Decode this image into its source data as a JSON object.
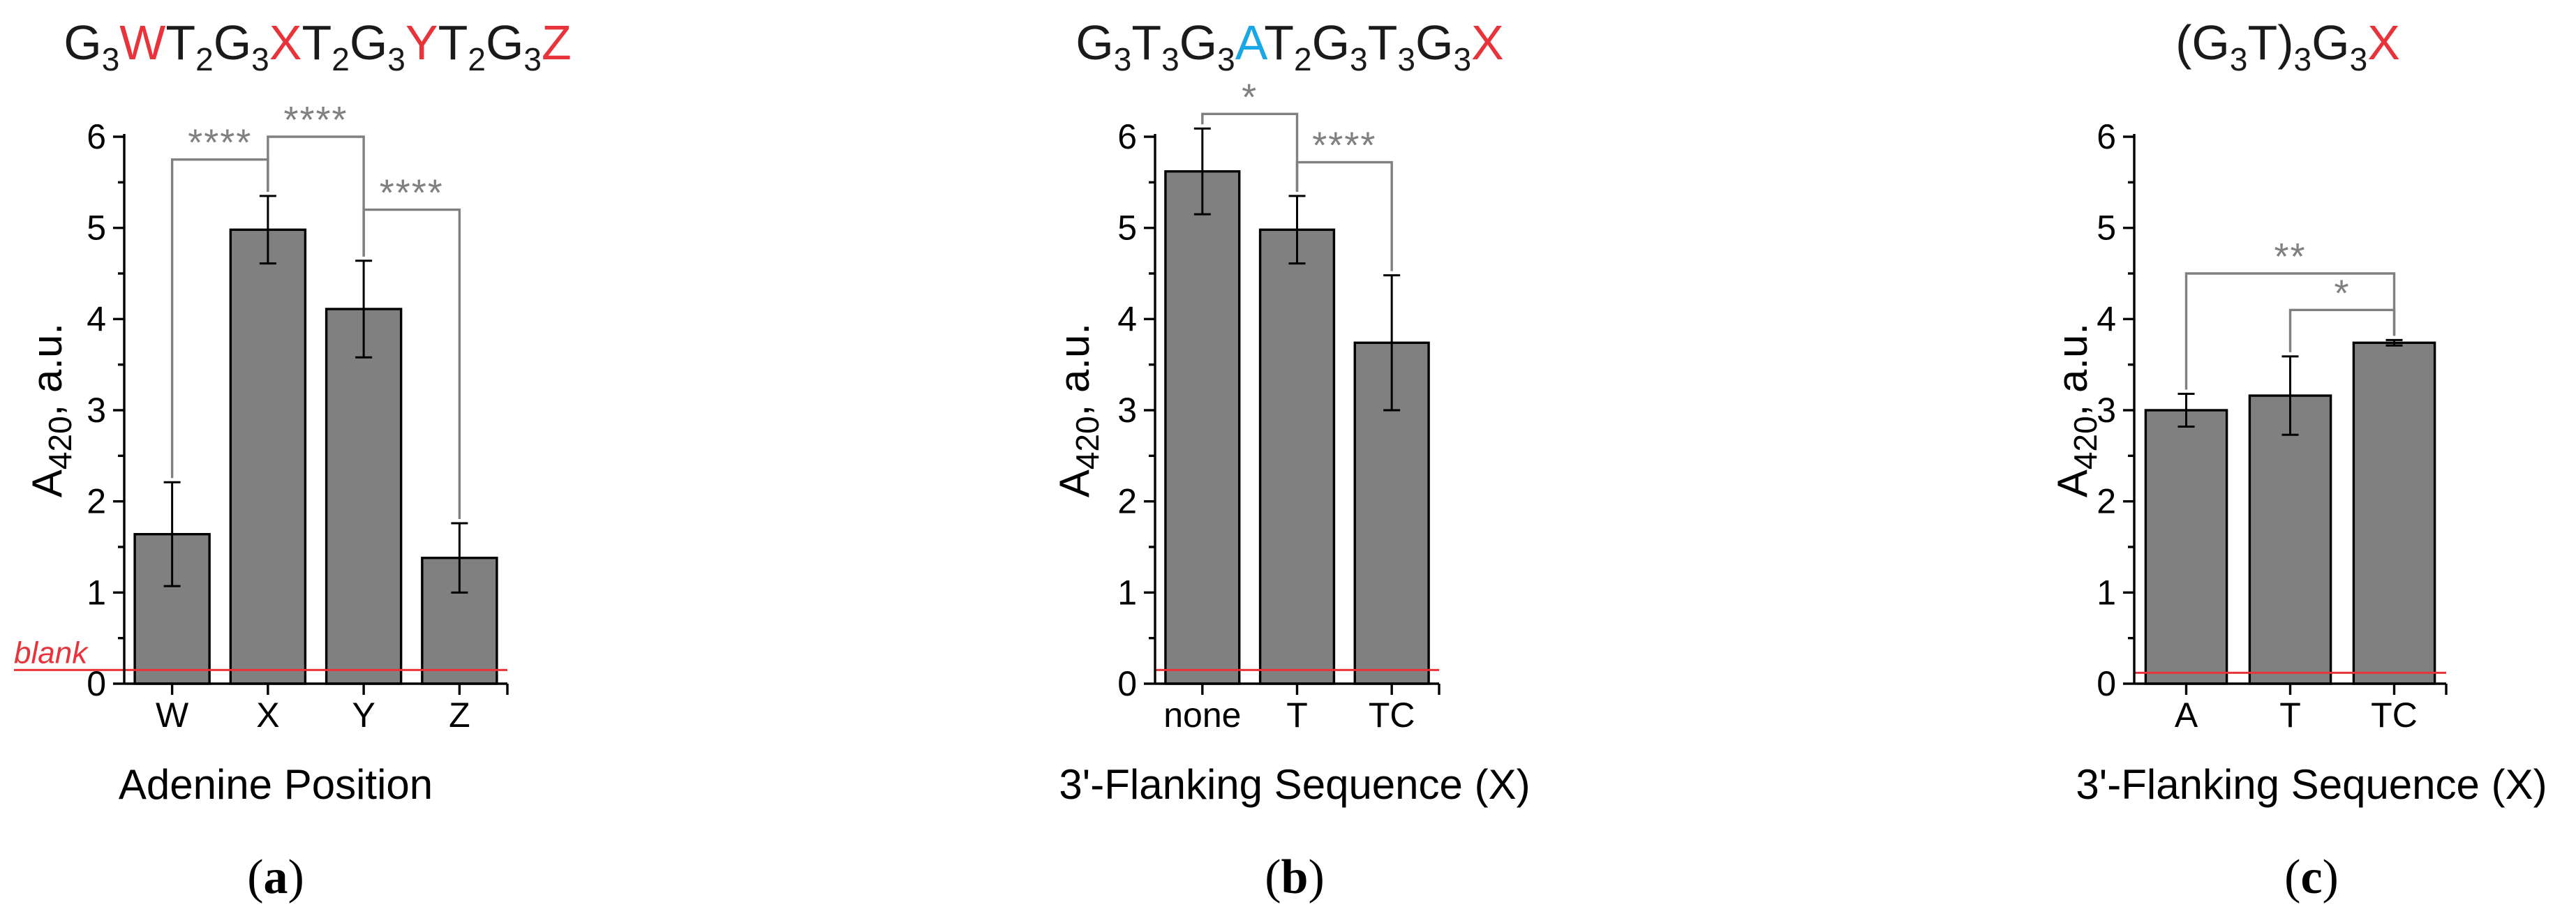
{
  "colors": {
    "bar": "#808080",
    "significance": "#808080",
    "highlight_red": "#e8333a",
    "highlight_blue": "#1aa7e6",
    "baseline": "#e8333a"
  },
  "chart_data": [
    {
      "panel": "(a)",
      "type": "bar",
      "title": "G3WT2G3XT2G3YT2G3Z",
      "title_parts": [
        {
          "text": "G",
          "style": "normal"
        },
        {
          "text": "3",
          "style": "sub"
        },
        {
          "text": "W",
          "style": "red"
        },
        {
          "text": "T",
          "style": "normal"
        },
        {
          "text": "2",
          "style": "sub"
        },
        {
          "text": "G",
          "style": "normal"
        },
        {
          "text": "3",
          "style": "sub"
        },
        {
          "text": "X",
          "style": "red"
        },
        {
          "text": "T",
          "style": "normal"
        },
        {
          "text": "2",
          "style": "sub"
        },
        {
          "text": "G",
          "style": "normal"
        },
        {
          "text": "3",
          "style": "sub"
        },
        {
          "text": "Y",
          "style": "red"
        },
        {
          "text": "T",
          "style": "normal"
        },
        {
          "text": "2",
          "style": "sub"
        },
        {
          "text": "G",
          "style": "normal"
        },
        {
          "text": "3",
          "style": "sub"
        },
        {
          "text": "Z",
          "style": "red"
        }
      ],
      "categories": [
        "W",
        "X",
        "Y",
        "Z"
      ],
      "values": [
        1.64,
        4.98,
        4.11,
        1.38
      ],
      "errors": [
        0.57,
        0.37,
        0.53,
        0.38
      ],
      "xlabel": "Adenine Position",
      "ylabel_main": "A",
      "ylabel_sub": "420",
      "ylabel_tail": ", a.u.",
      "ylim": [
        0,
        6
      ],
      "yticks": [
        "0",
        "1",
        "2",
        "3",
        "4",
        "5",
        "6"
      ],
      "baseline": {
        "value": 0.15,
        "label": "blank"
      },
      "significance": [
        {
          "from": 0,
          "to": 1,
          "label": "****",
          "level": 5.75
        },
        {
          "from": 1,
          "to": 2,
          "label": "****",
          "level": 6.0
        },
        {
          "from": 2,
          "to": 3,
          "label": "****",
          "level": 5.2
        }
      ]
    },
    {
      "panel": "(b)",
      "type": "bar",
      "title": "G3T3G3AT2G3T3G3X",
      "title_parts": [
        {
          "text": "G",
          "style": "normal"
        },
        {
          "text": "3",
          "style": "sub"
        },
        {
          "text": "T",
          "style": "normal"
        },
        {
          "text": "3",
          "style": "sub"
        },
        {
          "text": "G",
          "style": "normal"
        },
        {
          "text": "3",
          "style": "sub"
        },
        {
          "text": "A",
          "style": "blue"
        },
        {
          "text": "T",
          "style": "normal"
        },
        {
          "text": "2",
          "style": "sub"
        },
        {
          "text": "G",
          "style": "normal"
        },
        {
          "text": "3",
          "style": "sub"
        },
        {
          "text": "T",
          "style": "normal"
        },
        {
          "text": "3",
          "style": "sub"
        },
        {
          "text": "G",
          "style": "normal"
        },
        {
          "text": "3",
          "style": "sub"
        },
        {
          "text": "X",
          "style": "red"
        }
      ],
      "categories": [
        "none",
        "T",
        "TC"
      ],
      "values": [
        5.62,
        4.98,
        3.74
      ],
      "errors": [
        0.47,
        0.37,
        0.74
      ],
      "xlabel": "3'-Flanking Sequence (X)",
      "ylabel_main": "A",
      "ylabel_sub": "420",
      "ylabel_tail": ", a.u.",
      "ylim": [
        0,
        6
      ],
      "yticks": [
        "0",
        "1",
        "2",
        "3",
        "4",
        "5",
        "6"
      ],
      "baseline": {
        "value": 0.15,
        "label": ""
      },
      "significance": [
        {
          "from": 0,
          "to": 1,
          "label": "*",
          "level": 6.25
        },
        {
          "from": 1,
          "to": 2,
          "label": "****",
          "level": 5.72
        }
      ]
    },
    {
      "panel": "(c)",
      "type": "bar",
      "title": "(G3T)3G3X",
      "title_parts": [
        {
          "text": "(G",
          "style": "normal"
        },
        {
          "text": "3",
          "style": "sub"
        },
        {
          "text": "T)",
          "style": "normal"
        },
        {
          "text": "3",
          "style": "sub"
        },
        {
          "text": "G",
          "style": "normal"
        },
        {
          "text": "3",
          "style": "sub"
        },
        {
          "text": "X",
          "style": "red"
        }
      ],
      "categories": [
        "A",
        "T",
        "TC"
      ],
      "values": [
        3.0,
        3.16,
        3.74
      ],
      "errors": [
        0.18,
        0.43,
        0.03
      ],
      "xlabel": "3'-Flanking Sequence (X)",
      "ylabel_main": "A",
      "ylabel_sub": "420",
      "ylabel_tail": ", a.u.",
      "ylim": [
        0,
        6
      ],
      "yticks": [
        "0",
        "1",
        "2",
        "3",
        "4",
        "5",
        "6"
      ],
      "baseline": {
        "value": 0.12,
        "label": ""
      },
      "significance": [
        {
          "from": 0,
          "to": 2,
          "label": "**",
          "level": 4.5
        },
        {
          "from": 1,
          "to": 2,
          "label": "*",
          "level": 4.1
        }
      ]
    }
  ]
}
